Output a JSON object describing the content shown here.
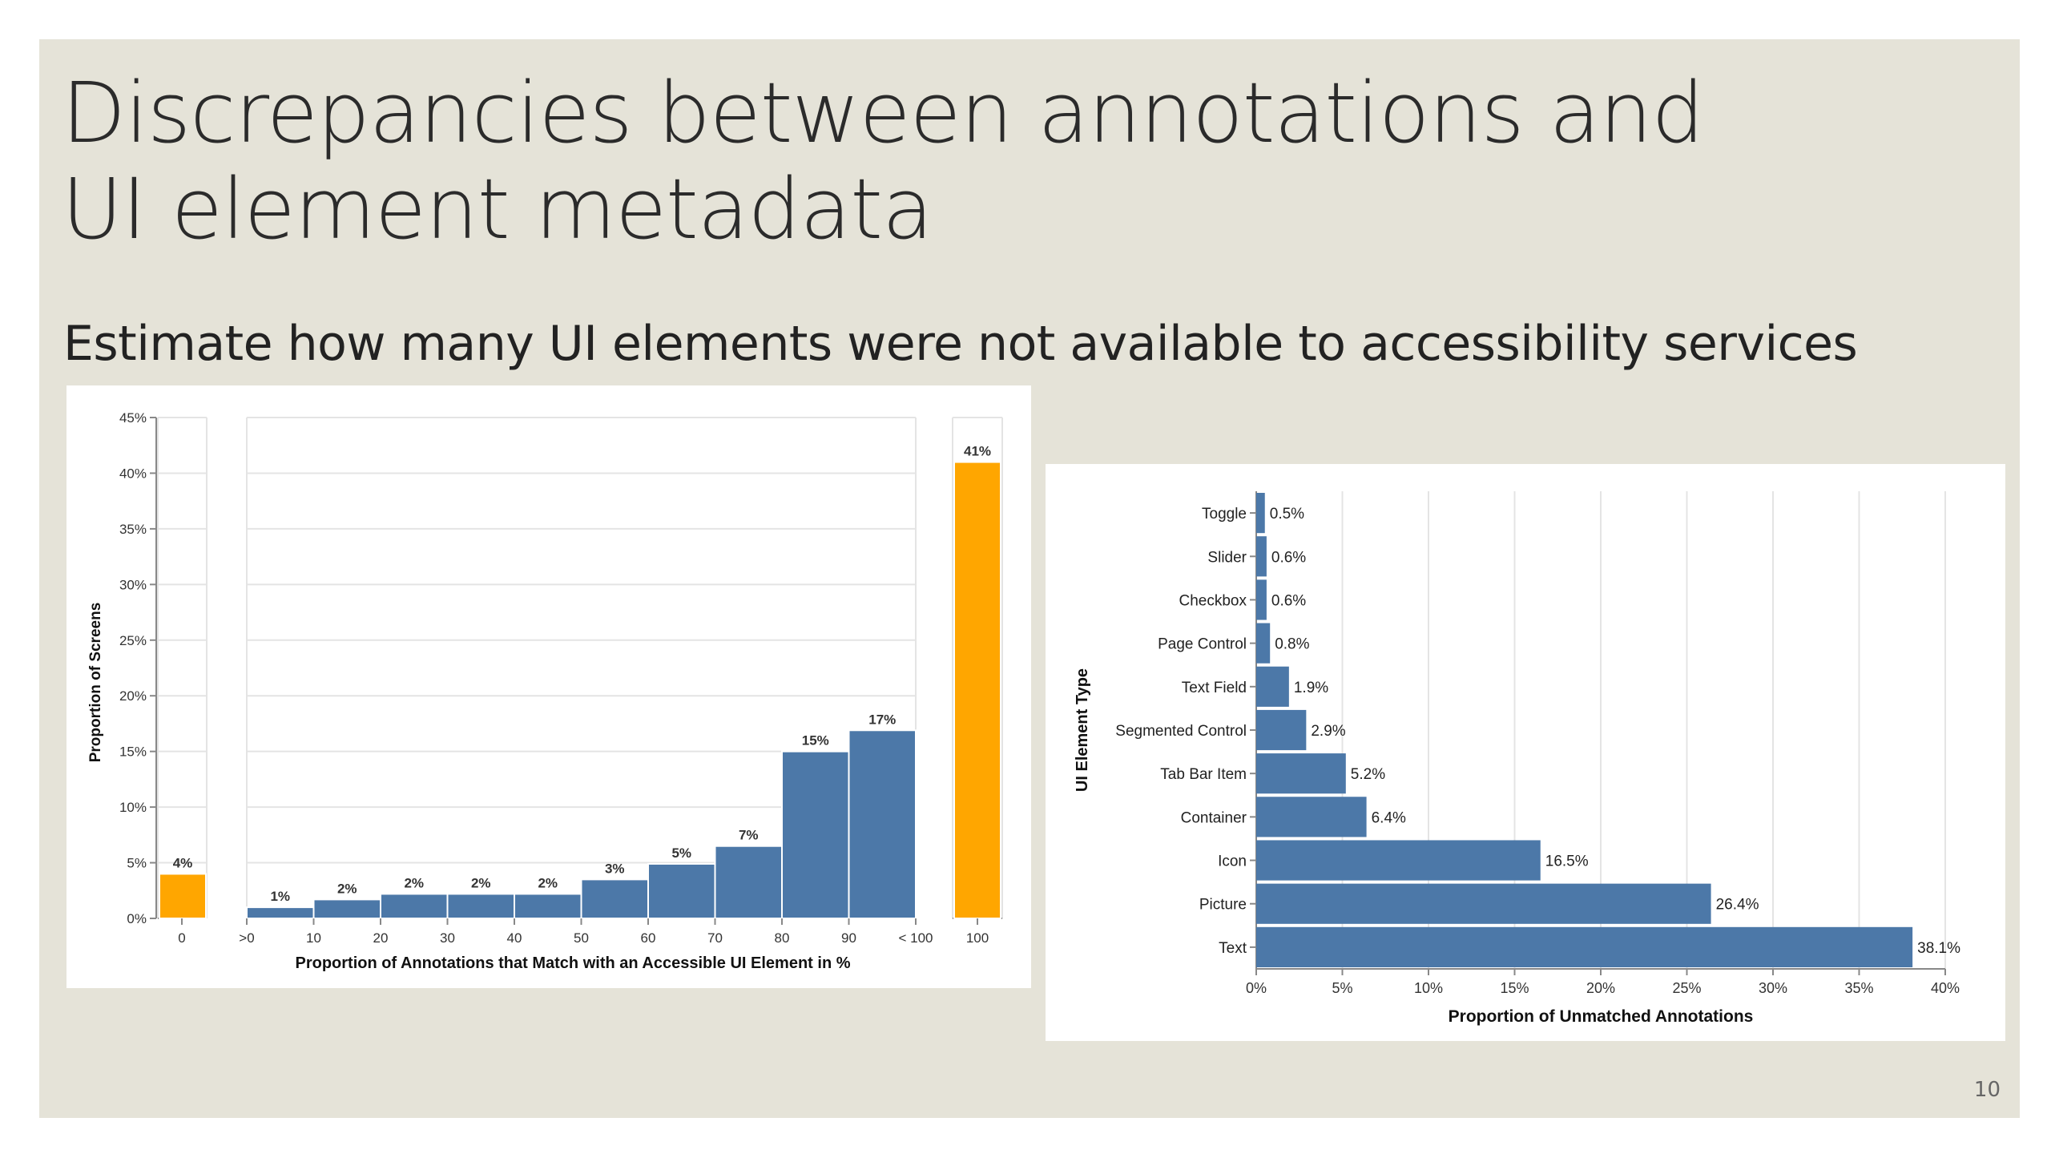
{
  "slide": {
    "title_line1": "Discrepancies between annotations and",
    "title_line2": "UI element metadata",
    "subtitle": "Estimate how many UI elements were not available to accessibility services",
    "slide_number": "10"
  },
  "chart_data": [
    {
      "type": "bar",
      "ylabel": "Proportion of Screens",
      "xlabel": "Proportion of Annotations that Match with an Accessible UI Element in %",
      "ylim": [
        0,
        45
      ],
      "yticks": [
        "0%",
        "5%",
        "10%",
        "15%",
        "20%",
        "25%",
        "30%",
        "35%",
        "40%",
        "45%"
      ],
      "grid": true,
      "colors": {
        "bins": "#4c78a8",
        "extremes": "#ffa600"
      },
      "panels": [
        {
          "categories": [
            "0"
          ],
          "values": [
            4
          ],
          "labels": [
            "4%"
          ],
          "color": "#ffa600"
        },
        {
          "bin_edges": [
            ">0",
            "10",
            "20",
            "30",
            "40",
            "50",
            "60",
            "70",
            "80",
            "90",
            "< 100"
          ],
          "values": [
            1,
            2,
            2,
            2,
            2,
            3,
            5,
            7,
            15,
            17
          ],
          "labels": [
            "1%",
            "2%",
            "2%",
            "2%",
            "2%",
            "3%",
            "5%",
            "7%",
            "15%",
            "17%"
          ],
          "heights": [
            1,
            1.7,
            2.2,
            2.2,
            2.2,
            3.5,
            4.9,
            6.5,
            15,
            16.9
          ],
          "color": "#4c78a8"
        },
        {
          "categories": [
            "100"
          ],
          "values": [
            41
          ],
          "labels": [
            "41%"
          ],
          "color": "#ffa600"
        }
      ]
    },
    {
      "type": "bar",
      "orientation": "horizontal",
      "ylabel": "UI Element Type",
      "xlabel": "Proportion of Unmatched Annotations",
      "xlim": [
        0,
        40
      ],
      "xticks": [
        "0%",
        "5%",
        "10%",
        "15%",
        "20%",
        "25%",
        "30%",
        "35%",
        "40%"
      ],
      "grid": true,
      "color": "#4c78a8",
      "categories": [
        "Toggle",
        "Slider",
        "Checkbox",
        "Page Control",
        "Text Field",
        "Segmented Control",
        "Tab Bar Item",
        "Container",
        "Icon",
        "Picture",
        "Text"
      ],
      "values": [
        0.5,
        0.6,
        0.6,
        0.8,
        1.9,
        2.9,
        5.2,
        6.4,
        16.5,
        26.4,
        38.1
      ],
      "labels": [
        "0.5%",
        "0.6%",
        "0.6%",
        "0.8%",
        "1.9%",
        "2.9%",
        "5.2%",
        "6.4%",
        "16.5%",
        "26.4%",
        "38.1%"
      ]
    }
  ]
}
